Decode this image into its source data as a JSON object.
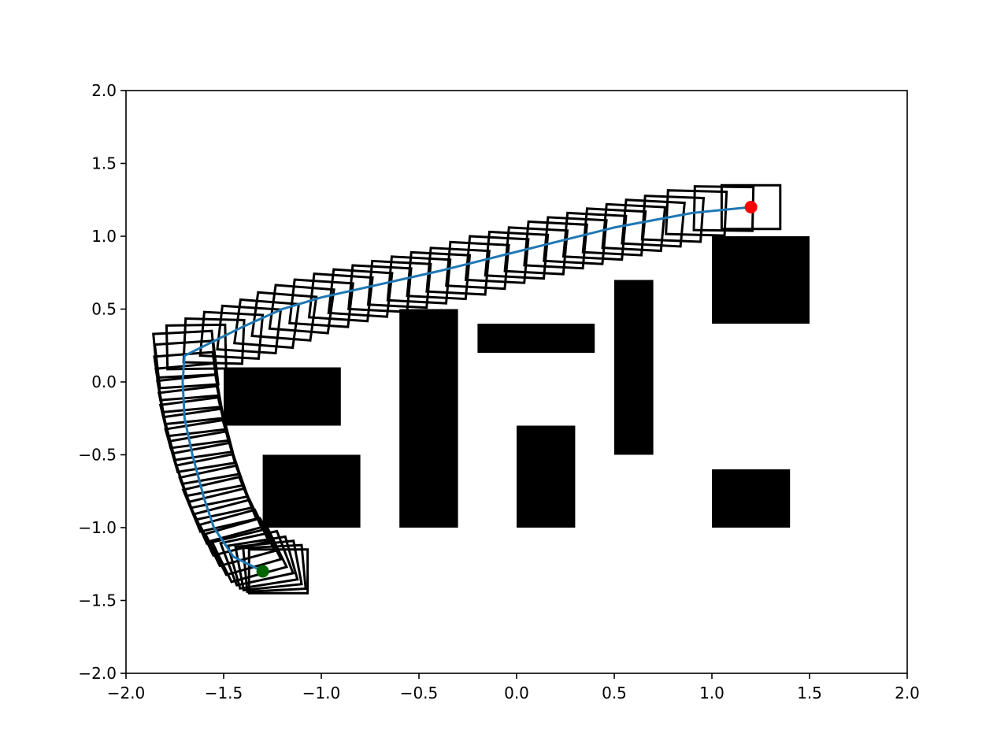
{
  "chart_data": {
    "type": "scatter",
    "title": "",
    "xlabel": "",
    "ylabel": "",
    "xlim": [
      -2.0,
      2.0
    ],
    "ylim": [
      -2.0,
      2.0
    ],
    "xticks": [
      -2.0,
      -1.5,
      -1.0,
      -0.5,
      0.0,
      0.5,
      1.0,
      1.5,
      2.0
    ],
    "yticks": [
      -2.0,
      -1.5,
      -1.0,
      -0.5,
      0.0,
      0.5,
      1.0,
      1.5,
      2.0
    ],
    "xtick_labels": [
      "−2.0",
      "−1.5",
      "−1.0",
      "−0.5",
      "0.0",
      "0.5",
      "1.0",
      "1.5",
      "2.0"
    ],
    "ytick_labels": [
      "−2.0",
      "−1.5",
      "−1.0",
      "−0.5",
      "0.0",
      "0.5",
      "1.0",
      "1.5",
      "2.0"
    ],
    "grid": false,
    "obstacles": [
      {
        "x": -1.5,
        "y": -0.3,
        "w": 0.6,
        "h": 0.4
      },
      {
        "x": -1.3,
        "y": -1.0,
        "w": 0.5,
        "h": 0.5
      },
      {
        "x": -0.6,
        "y": -1.0,
        "w": 0.3,
        "h": 1.5
      },
      {
        "x": -0.2,
        "y": 0.2,
        "w": 0.6,
        "h": 0.2
      },
      {
        "x": 0.0,
        "y": -1.0,
        "w": 0.3,
        "h": 0.7
      },
      {
        "x": 0.5,
        "y": -0.5,
        "w": 0.2,
        "h": 1.2
      },
      {
        "x": 1.0,
        "y": 0.4,
        "w": 0.5,
        "h": 0.6
      },
      {
        "x": 1.0,
        "y": -1.0,
        "w": 0.4,
        "h": 0.4
      }
    ],
    "path": {
      "color": "#1f77b4",
      "x": [
        -1.3,
        -1.45,
        -1.55,
        -1.6,
        -1.66,
        -1.7,
        -1.71,
        -1.7,
        -1.55,
        -1.4,
        -1.2,
        -1.0,
        -0.7,
        -0.4,
        -0.1,
        0.2,
        0.5,
        0.9,
        1.2
      ],
      "y": [
        -1.3,
        -1.2,
        -1.0,
        -0.8,
        -0.5,
        -0.25,
        0.0,
        0.18,
        0.28,
        0.38,
        0.5,
        0.58,
        0.67,
        0.76,
        0.86,
        0.96,
        1.06,
        1.16,
        1.2
      ]
    },
    "footprints": {
      "color": "#000000",
      "size": 0.3,
      "poses": [
        {
          "x": -1.22,
          "y": -1.3,
          "a": 0
        },
        {
          "x": -1.24,
          "y": -1.28,
          "a": 4
        },
        {
          "x": -1.27,
          "y": -1.26,
          "a": 8
        },
        {
          "x": -1.3,
          "y": -1.24,
          "a": 12
        },
        {
          "x": -1.33,
          "y": -1.21,
          "a": 16
        },
        {
          "x": -1.37,
          "y": -1.18,
          "a": 20
        },
        {
          "x": -1.4,
          "y": -1.13,
          "a": 21
        },
        {
          "x": -1.43,
          "y": -1.07,
          "a": 20
        },
        {
          "x": -1.46,
          "y": -1.0,
          "a": 19
        },
        {
          "x": -1.49,
          "y": -0.92,
          "a": 18
        },
        {
          "x": -1.52,
          "y": -0.84,
          "a": 17
        },
        {
          "x": -1.54,
          "y": -0.76,
          "a": 16
        },
        {
          "x": -1.56,
          "y": -0.68,
          "a": 15
        },
        {
          "x": -1.58,
          "y": -0.6,
          "a": 14
        },
        {
          "x": -1.6,
          "y": -0.52,
          "a": 13
        },
        {
          "x": -1.62,
          "y": -0.44,
          "a": 12
        },
        {
          "x": -1.63,
          "y": -0.36,
          "a": 11
        },
        {
          "x": -1.65,
          "y": -0.28,
          "a": 10
        },
        {
          "x": -1.66,
          "y": -0.2,
          "a": 9
        },
        {
          "x": -1.67,
          "y": -0.12,
          "a": 8
        },
        {
          "x": -1.68,
          "y": -0.04,
          "a": 7
        },
        {
          "x": -1.69,
          "y": 0.04,
          "a": 6
        },
        {
          "x": -1.69,
          "y": 0.12,
          "a": 5
        },
        {
          "x": -1.7,
          "y": 0.19,
          "a": 4
        },
        {
          "x": -1.64,
          "y": 0.24,
          "a": 1
        },
        {
          "x": -1.55,
          "y": 0.28,
          "a": -2
        },
        {
          "x": -1.46,
          "y": 0.32,
          "a": -4
        },
        {
          "x": -1.37,
          "y": 0.36,
          "a": -5
        },
        {
          "x": -1.28,
          "y": 0.4,
          "a": -6
        },
        {
          "x": -1.19,
          "y": 0.45,
          "a": -6
        },
        {
          "x": -1.1,
          "y": 0.5,
          "a": -6
        },
        {
          "x": -1.0,
          "y": 0.54,
          "a": -5
        },
        {
          "x": -0.9,
          "y": 0.58,
          "a": -5
        },
        {
          "x": -0.8,
          "y": 0.61,
          "a": -5
        },
        {
          "x": -0.7,
          "y": 0.64,
          "a": -4
        },
        {
          "x": -0.6,
          "y": 0.67,
          "a": -4
        },
        {
          "x": -0.5,
          "y": 0.7,
          "a": -4
        },
        {
          "x": -0.4,
          "y": 0.73,
          "a": -4
        },
        {
          "x": -0.3,
          "y": 0.76,
          "a": -4
        },
        {
          "x": -0.2,
          "y": 0.8,
          "a": -4
        },
        {
          "x": -0.1,
          "y": 0.84,
          "a": -4
        },
        {
          "x": 0.0,
          "y": 0.87,
          "a": -4
        },
        {
          "x": 0.1,
          "y": 0.9,
          "a": -4
        },
        {
          "x": 0.2,
          "y": 0.94,
          "a": -4
        },
        {
          "x": 0.3,
          "y": 0.97,
          "a": -4
        },
        {
          "x": 0.4,
          "y": 1.0,
          "a": -4
        },
        {
          "x": 0.5,
          "y": 1.03,
          "a": -4
        },
        {
          "x": 0.6,
          "y": 1.06,
          "a": -4
        },
        {
          "x": 0.7,
          "y": 1.09,
          "a": -4
        },
        {
          "x": 0.8,
          "y": 1.12,
          "a": -3
        },
        {
          "x": 0.92,
          "y": 1.16,
          "a": -2
        },
        {
          "x": 1.06,
          "y": 1.19,
          "a": -1
        },
        {
          "x": 1.2,
          "y": 1.2,
          "a": 0
        }
      ]
    },
    "start": {
      "x": -1.3,
      "y": -1.3,
      "color": "#006400"
    },
    "goal": {
      "x": 1.2,
      "y": 1.2,
      "color": "#ff0000"
    }
  }
}
